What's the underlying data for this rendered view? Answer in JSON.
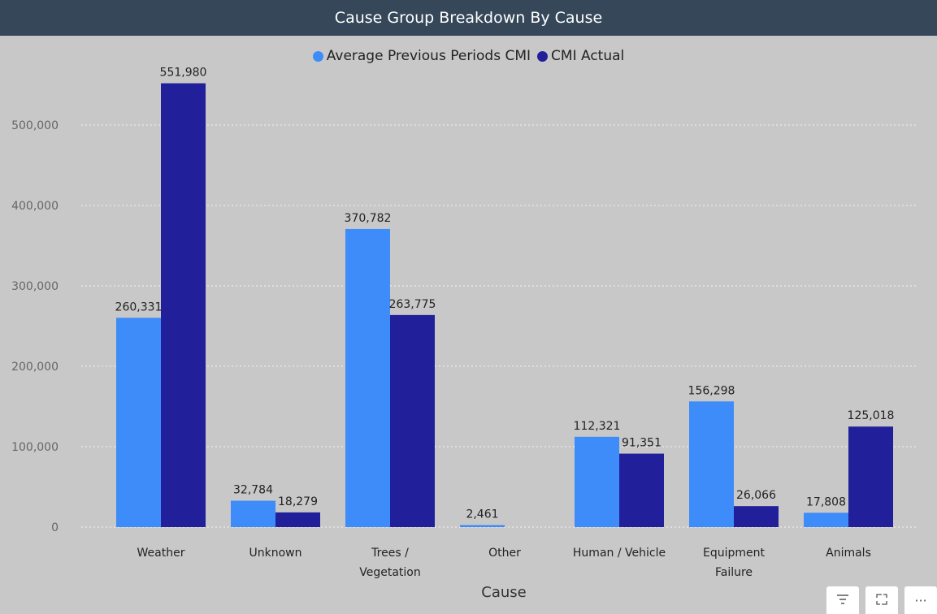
{
  "visual": {
    "title": "Cause Group Breakdown By Cause"
  },
  "colors": {
    "series_prev": "#3d8cf9",
    "series_actual": "#21209a",
    "title_bg": "#354759",
    "grid": "#ebebeb"
  },
  "chart_data": {
    "type": "bar",
    "title": "Cause Group Breakdown By Cause",
    "xlabel": "Cause",
    "ylabel": "",
    "ylim": [
      0,
      560000
    ],
    "yticks": [
      "0",
      "100,000",
      "200,000",
      "300,000",
      "400,000",
      "500,000"
    ],
    "ytick_values": [
      0,
      100000,
      200000,
      300000,
      400000,
      500000
    ],
    "grid": true,
    "legend_position": "top-center",
    "categories": [
      [
        "Weather"
      ],
      [
        "Unknown"
      ],
      [
        "Trees /",
        "Vegetation"
      ],
      [
        "Other"
      ],
      [
        "Human / Vehicle"
      ],
      [
        "Equipment",
        "Failure"
      ],
      [
        "Animals"
      ]
    ],
    "series": [
      {
        "name": "Average Previous Periods CMI",
        "values": [
          260331,
          32784,
          370782,
          2461,
          112321,
          156298,
          17808
        ],
        "labels": [
          "260,331",
          "32,784",
          "370,782",
          "2,461",
          "112,321",
          "156,298",
          "17,808"
        ]
      },
      {
        "name": "CMI Actual",
        "values": [
          551980,
          18279,
          263775,
          null,
          91351,
          26066,
          125018
        ],
        "labels": [
          "551,980",
          "18,279",
          "263,775",
          "",
          "91,351",
          "26,066",
          "125,018"
        ]
      }
    ]
  },
  "footer": {
    "filter_icon": "filter-icon",
    "focus_icon": "focus-mode-icon",
    "more_icon": "more-options-icon",
    "more_glyph": "···"
  }
}
